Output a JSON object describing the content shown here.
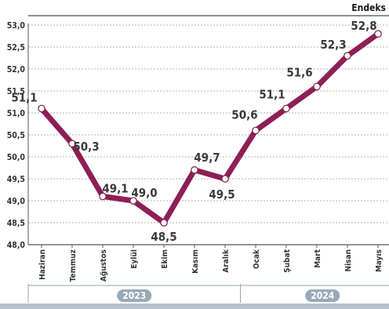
{
  "chart_data": {
    "type": "line",
    "unit_label": "Endeks",
    "categories": [
      "Haziran",
      "Temmuz",
      "Ağustos",
      "Eylül",
      "Ekim",
      "Kasım",
      "Aralık",
      "Ocak",
      "Şubat",
      "Mart",
      "Nisan",
      "Mayıs"
    ],
    "values": [
      51.1,
      50.3,
      49.1,
      49.0,
      48.5,
      49.7,
      49.5,
      50.6,
      51.1,
      51.6,
      52.3,
      52.8
    ],
    "data_labels": [
      "51,1",
      "50,3",
      "49,1",
      "49,0",
      "48,5",
      "49,7",
      "49,5",
      "50,6",
      "51,1",
      "51,6",
      "52,3",
      "52,8"
    ],
    "y_ticks": [
      "48,0",
      "48,5",
      "49,0",
      "49,5",
      "50,0",
      "50,5",
      "51,0",
      "51,5",
      "52,0",
      "52,5",
      "53,0"
    ],
    "ylim": [
      48.0,
      53.0
    ],
    "grid": true,
    "line_color": "#8e1f55",
    "year_groups": [
      {
        "label": "2023",
        "count": 7
      },
      {
        "label": "2024",
        "count": 5
      }
    ]
  }
}
